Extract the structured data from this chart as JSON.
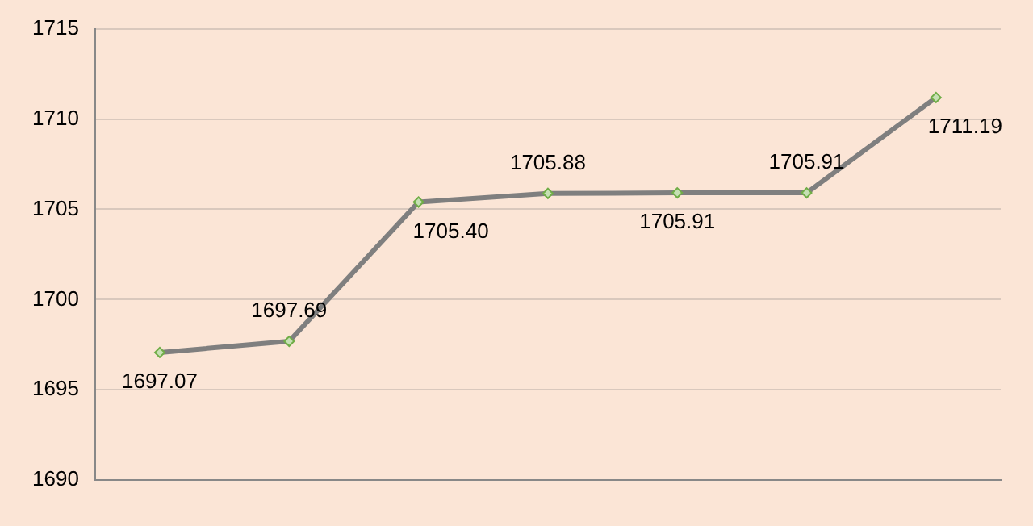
{
  "chart_data": {
    "type": "line",
    "categories": [
      null,
      null,
      null,
      null,
      null,
      null,
      null
    ],
    "series": [
      {
        "color": "#7f7f7f",
        "values": [
          1697.07,
          1697.69,
          1705.4,
          1705.88,
          1705.91,
          1705.91,
          1711.19
        ],
        "value_labels": [
          "1697.07",
          "1697.69",
          "1705.40",
          "1705.88",
          "1705.91",
          "1705.91",
          "1711.19"
        ]
      }
    ],
    "ylim": [
      1690,
      1715
    ],
    "yticks": [
      1690,
      1695,
      1700,
      1705,
      1710,
      1715
    ],
    "grid": "y",
    "legend": false,
    "marker": "diamond",
    "line_style": "solid"
  }
}
